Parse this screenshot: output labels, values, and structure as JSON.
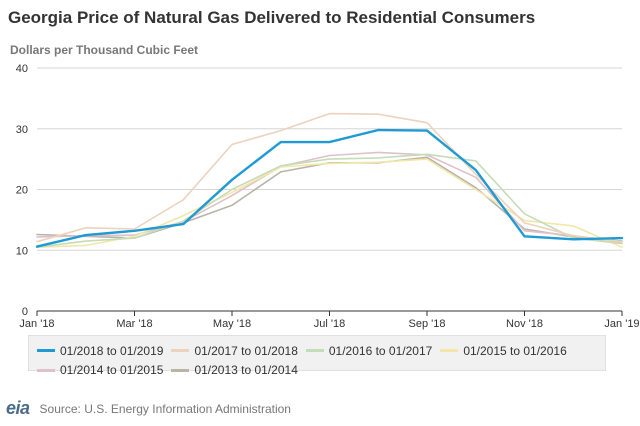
{
  "title": "Georgia Price of Natural Gas Delivered to Residential Consumers",
  "subtitle": "Dollars per Thousand Cubic Feet",
  "source": "Source: U.S. Energy Information Administration",
  "logo": "eia",
  "chart_data": {
    "type": "line",
    "ylim": [
      0,
      40
    ],
    "yticks": [
      "0",
      "10",
      "20",
      "30",
      "40"
    ],
    "x": [
      "Jan '18",
      "Feb '18",
      "Mar '18",
      "Apr '18",
      "May '18",
      "Jun '18",
      "Jul '18",
      "Aug '18",
      "Sep '18",
      "Oct '18",
      "Nov '18",
      "Dec '18",
      "Jan '19"
    ],
    "xtick_labels": [
      "Jan '18",
      "Mar '18",
      "May '18",
      "Jul '18",
      "Sep '18",
      "Nov '18",
      "Jan '19"
    ],
    "grid": "horizontal",
    "legend_position": "bottom",
    "series": [
      {
        "name": "01/2013 to 01/2014",
        "color": "#b8b4a8",
        "width": 1.6,
        "values": [
          12.6,
          12.3,
          12.0,
          14.5,
          17.4,
          22.9,
          24.4,
          24.4,
          25.3,
          20.3,
          13.5,
          12.2,
          11.5
        ]
      },
      {
        "name": "01/2014 to 01/2015",
        "color": "#dfc1c9",
        "width": 1.6,
        "values": [
          12.2,
          12.4,
          12.5,
          14.7,
          19.0,
          23.8,
          25.6,
          26.1,
          25.7,
          22.0,
          13.2,
          12.4,
          11.2
        ]
      },
      {
        "name": "01/2015 to 01/2016",
        "color": "#f3e6a8",
        "width": 1.6,
        "values": [
          10.5,
          10.8,
          12.3,
          15.7,
          19.5,
          23.7,
          24.3,
          24.5,
          25.0,
          20.0,
          14.9,
          14.0,
          10.5
        ]
      },
      {
        "name": "01/2016 to 01/2017",
        "color": "#c5dcb9",
        "width": 1.6,
        "values": [
          10.5,
          11.5,
          12.0,
          14.8,
          20.0,
          23.9,
          25.0,
          25.2,
          25.8,
          24.7,
          16.0,
          12.0,
          11.1
        ]
      },
      {
        "name": "01/2017 to 01/2018",
        "color": "#ecd3bd",
        "width": 1.6,
        "values": [
          11.4,
          13.7,
          13.5,
          18.3,
          27.4,
          29.7,
          32.5,
          32.4,
          31.0,
          22.5,
          14.5,
          12.4,
          11.4
        ]
      },
      {
        "name": "01/2018 to 01/2019",
        "color": "#1f9ad3",
        "width": 2.4,
        "values": [
          10.6,
          12.5,
          13.2,
          14.3,
          21.6,
          27.8,
          27.8,
          29.8,
          29.7,
          23.2,
          12.3,
          11.8,
          12.0
        ]
      }
    ],
    "legend_order": [
      "01/2018 to 01/2019",
      "01/2017 to 01/2018",
      "01/2016 to 01/2017",
      "01/2015 to 01/2016",
      "01/2014 to 01/2015",
      "01/2013 to 01/2014"
    ]
  }
}
